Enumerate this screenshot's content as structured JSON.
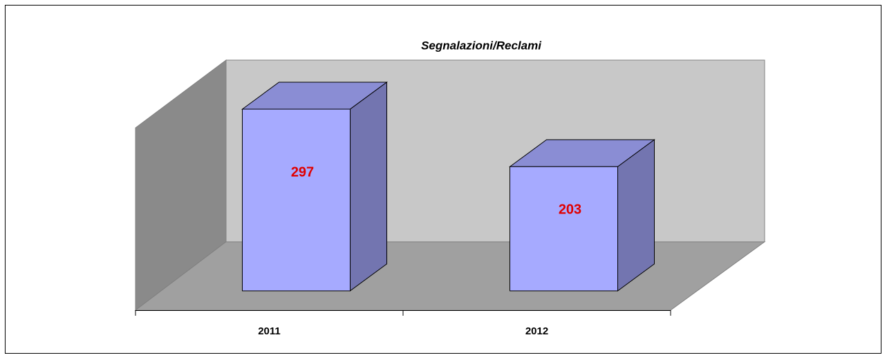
{
  "chart_data": {
    "type": "bar3d",
    "title": "Segnalazioni/Reclami",
    "categories": [
      "2011",
      "2012"
    ],
    "values": [
      297,
      203
    ],
    "color": "#a6aaff",
    "value_label_color": "#e00000"
  }
}
